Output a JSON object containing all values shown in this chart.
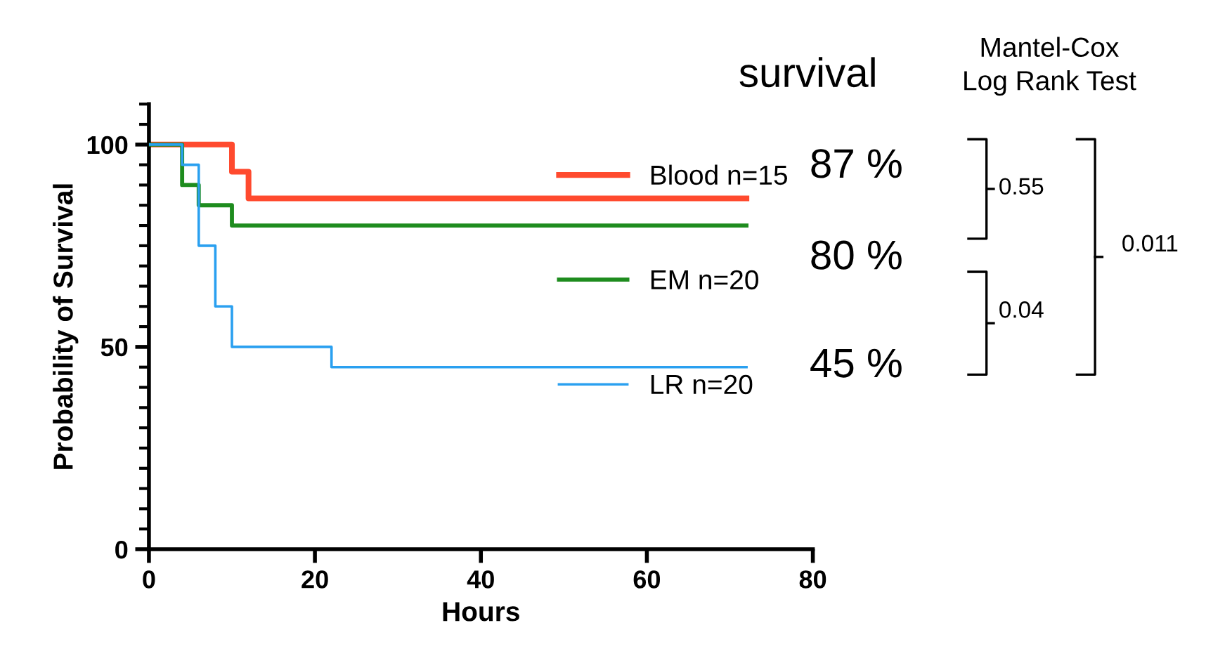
{
  "chart_data": {
    "type": "step",
    "xlabel": "Hours",
    "ylabel": "Probability of Survival",
    "xlim": [
      0,
      80
    ],
    "xticks": [
      0,
      20,
      40,
      60,
      80
    ],
    "ylim": [
      0,
      110
    ],
    "yticks": [
      0,
      50,
      100
    ],
    "series": [
      {
        "name": "Blood n=15",
        "color": "#ff4a2e",
        "x": [
          0,
          10,
          12,
          72
        ],
        "values": [
          100,
          93.3,
          86.7,
          86.7
        ]
      },
      {
        "name": "EM n=20",
        "color": "#1e8c1e",
        "x": [
          0,
          4,
          6,
          10,
          72
        ],
        "values": [
          100,
          90,
          85,
          80,
          80
        ]
      },
      {
        "name": "LR n=20",
        "color": "#2aa0f0",
        "x": [
          0,
          4,
          6,
          8,
          10,
          22,
          72
        ],
        "values": [
          100,
          95,
          75,
          60,
          50,
          45,
          45
        ]
      }
    ],
    "legend": "right",
    "grid": false,
    "annotations": [
      "survival",
      "87 %",
      "80 %",
      "45 %",
      "Mantel-Cox\nLog Rank Test",
      "0.55",
      "0.04",
      "0.011"
    ]
  }
}
